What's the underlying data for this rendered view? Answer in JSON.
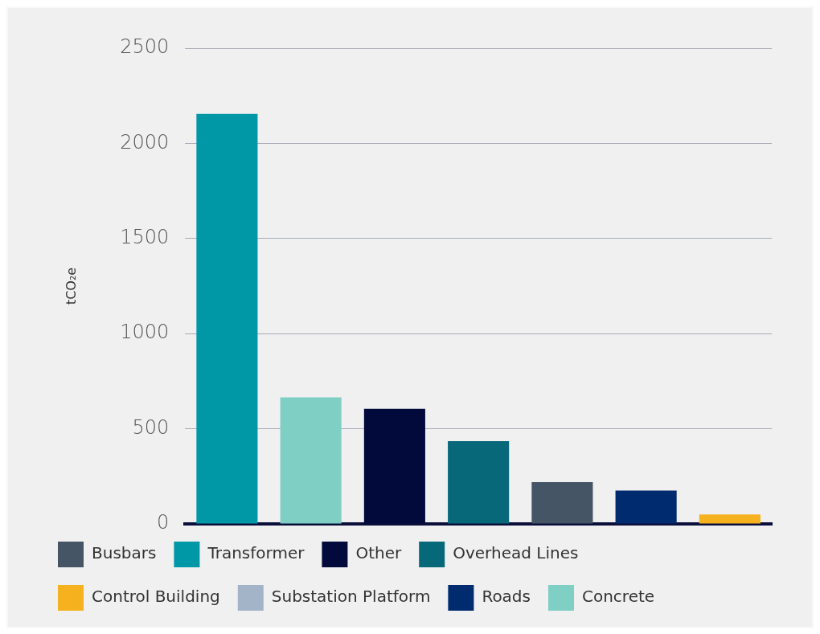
{
  "chart_data": {
    "type": "bar",
    "ylabel": "tCO₂e",
    "categories": [
      null,
      null,
      null,
      null,
      null,
      null,
      null
    ],
    "stacked": true,
    "ylim": [
      0,
      2500
    ],
    "yticks": [
      0,
      500,
      1000,
      1500,
      2000,
      2500
    ],
    "grid": "y",
    "legend": "bottom",
    "series": [
      {
        "name": "Busbars",
        "color": "#455565",
        "values": [
          null,
          null,
          null,
          null,
          220,
          null,
          null
        ]
      },
      {
        "name": "Transformer",
        "color": "#0097a7",
        "values": [
          2155,
          null,
          null,
          null,
          null,
          null,
          null
        ]
      },
      {
        "name": "Other",
        "color": "#020a3c",
        "values": [
          null,
          null,
          605,
          null,
          null,
          null,
          null
        ]
      },
      {
        "name": "Overhead Lines",
        "color": "#07687a",
        "values": [
          null,
          null,
          null,
          435,
          null,
          null,
          null
        ]
      },
      {
        "name": "Control Building",
        "color": "#f5b21e",
        "values": [
          null,
          null,
          null,
          null,
          null,
          null,
          50
        ]
      },
      {
        "name": "Substation Platform",
        "color": "#a3b3c8",
        "values": [
          null,
          null,
          null,
          null,
          null,
          null,
          null
        ]
      },
      {
        "name": "Roads",
        "color": "#002b6e",
        "values": [
          null,
          null,
          null,
          null,
          null,
          175,
          null
        ]
      },
      {
        "name": "Concrete",
        "color": "#7fcfc4",
        "values": [
          null,
          665,
          null,
          null,
          null,
          null,
          null
        ]
      }
    ]
  }
}
